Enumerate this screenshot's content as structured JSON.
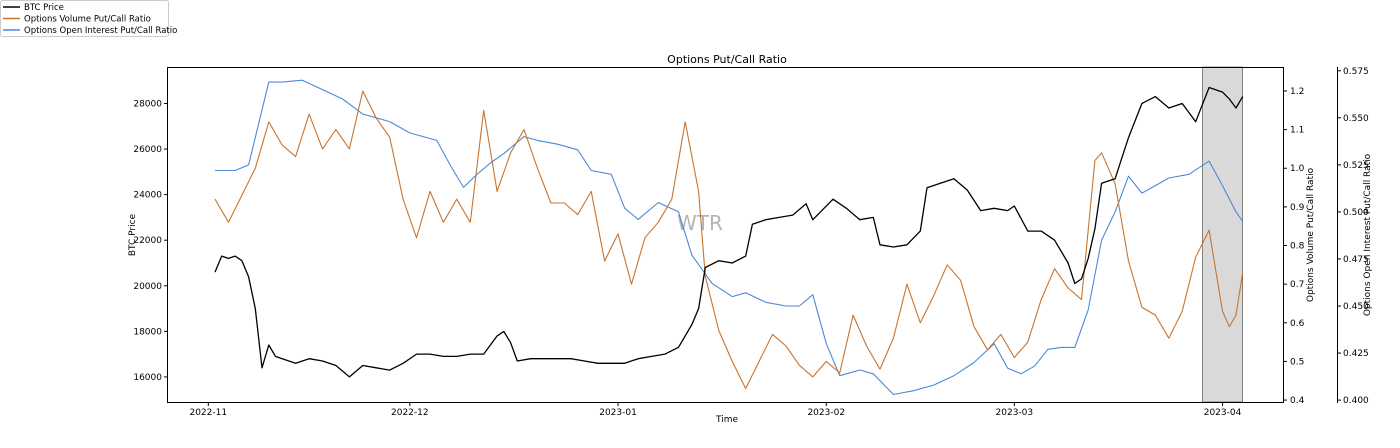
{
  "chart_data": {
    "type": "line",
    "title": "Options Put/Call Ratio",
    "xlabel": "Time",
    "watermark": "WTR",
    "x_ticks": [
      "2022-11",
      "2022-12",
      "2023-01",
      "2023-02",
      "2023-03",
      "2023-04"
    ],
    "x_range": [
      "2022-10-26",
      "2023-04-10"
    ],
    "shaded_region": [
      "2023-03-29",
      "2023-04-04"
    ],
    "legend": {
      "position": "top-left",
      "entries": [
        {
          "label": "BTC Price",
          "color": "#000000"
        },
        {
          "label": "Options Volume Put/Call Ratio",
          "color": "#c8742f"
        },
        {
          "label": "Options Open Interest Put/Call Ratio",
          "color": "#4a8ad8"
        }
      ]
    },
    "axes": {
      "left": {
        "label": "BTC Price",
        "ylim": [
          14900,
          29600
        ],
        "ticks": [
          16000,
          18000,
          20000,
          22000,
          24000,
          26000,
          28000
        ],
        "tick_labels": [
          "16000",
          "18000",
          "20000",
          "22000",
          "24000",
          "26000",
          "28000"
        ]
      },
      "right1": {
        "label": "Options Volume Put/Call Ratio",
        "ylim": [
          0.395,
          1.262
        ],
        "ticks": [
          0.4,
          0.5,
          0.6,
          0.7,
          0.8,
          0.9,
          1.0,
          1.1,
          1.2
        ],
        "tick_labels": [
          "0.4",
          "0.5",
          "0.6",
          "0.7",
          "0.8",
          "0.9",
          "1.0",
          "1.1",
          "1.2"
        ]
      },
      "right2": {
        "label": "Options Open Interest Put/Call Ratio",
        "ylim": [
          0.399,
          0.577
        ],
        "ticks": [
          0.4,
          0.425,
          0.45,
          0.475,
          0.5,
          0.525,
          0.55,
          0.575
        ],
        "tick_labels": [
          "0.400",
          "0.425",
          "0.450",
          "0.475",
          "0.500",
          "0.525",
          "0.550",
          "0.575"
        ]
      }
    },
    "series": [
      {
        "name": "BTC Price",
        "axis": "left",
        "color": "#000000",
        "points": [
          [
            "2022-11-02",
            20600
          ],
          [
            "2022-11-03",
            21300
          ],
          [
            "2022-11-04",
            21200
          ],
          [
            "2022-11-05",
            21300
          ],
          [
            "2022-11-06",
            21100
          ],
          [
            "2022-11-07",
            20400
          ],
          [
            "2022-11-08",
            19000
          ],
          [
            "2022-11-09",
            16400
          ],
          [
            "2022-11-10",
            17400
          ],
          [
            "2022-11-11",
            16900
          ],
          [
            "2022-11-12",
            16800
          ],
          [
            "2022-11-13",
            16700
          ],
          [
            "2022-11-14",
            16600
          ],
          [
            "2022-11-16",
            16800
          ],
          [
            "2022-11-18",
            16700
          ],
          [
            "2022-11-20",
            16500
          ],
          [
            "2022-11-22",
            16000
          ],
          [
            "2022-11-24",
            16500
          ],
          [
            "2022-11-26",
            16400
          ],
          [
            "2022-11-28",
            16300
          ],
          [
            "2022-11-30",
            16600
          ],
          [
            "2022-12-02",
            17000
          ],
          [
            "2022-12-04",
            17000
          ],
          [
            "2022-12-06",
            16900
          ],
          [
            "2022-12-08",
            16900
          ],
          [
            "2022-12-10",
            17000
          ],
          [
            "2022-12-12",
            17000
          ],
          [
            "2022-12-14",
            17800
          ],
          [
            "2022-12-15",
            18000
          ],
          [
            "2022-12-16",
            17500
          ],
          [
            "2022-12-17",
            16700
          ],
          [
            "2022-12-19",
            16800
          ],
          [
            "2022-12-21",
            16800
          ],
          [
            "2022-12-23",
            16800
          ],
          [
            "2022-12-25",
            16800
          ],
          [
            "2022-12-27",
            16700
          ],
          [
            "2022-12-29",
            16600
          ],
          [
            "2022-12-31",
            16600
          ],
          [
            "2023-01-02",
            16600
          ],
          [
            "2023-01-04",
            16800
          ],
          [
            "2023-01-06",
            16900
          ],
          [
            "2023-01-08",
            17000
          ],
          [
            "2023-01-10",
            17300
          ],
          [
            "2023-01-12",
            18300
          ],
          [
            "2023-01-13",
            19000
          ],
          [
            "2023-01-14",
            20800
          ],
          [
            "2023-01-16",
            21100
          ],
          [
            "2023-01-18",
            21000
          ],
          [
            "2023-01-20",
            21300
          ],
          [
            "2023-01-21",
            22700
          ],
          [
            "2023-01-23",
            22900
          ],
          [
            "2023-01-25",
            23000
          ],
          [
            "2023-01-27",
            23100
          ],
          [
            "2023-01-29",
            23600
          ],
          [
            "2023-01-30",
            22900
          ],
          [
            "2023-01-31",
            23200
          ],
          [
            "2023-02-02",
            23800
          ],
          [
            "2023-02-04",
            23400
          ],
          [
            "2023-02-06",
            22900
          ],
          [
            "2023-02-08",
            23000
          ],
          [
            "2023-02-09",
            21800
          ],
          [
            "2023-02-11",
            21700
          ],
          [
            "2023-02-13",
            21800
          ],
          [
            "2023-02-15",
            22400
          ],
          [
            "2023-02-16",
            24300
          ],
          [
            "2023-02-18",
            24500
          ],
          [
            "2023-02-20",
            24700
          ],
          [
            "2023-02-22",
            24200
          ],
          [
            "2023-02-24",
            23300
          ],
          [
            "2023-02-26",
            23400
          ],
          [
            "2023-02-28",
            23300
          ],
          [
            "2023-03-01",
            23500
          ],
          [
            "2023-03-03",
            22400
          ],
          [
            "2023-03-05",
            22400
          ],
          [
            "2023-03-07",
            22000
          ],
          [
            "2023-03-09",
            21000
          ],
          [
            "2023-03-10",
            20100
          ],
          [
            "2023-03-11",
            20300
          ],
          [
            "2023-03-12",
            21200
          ],
          [
            "2023-03-13",
            22500
          ],
          [
            "2023-03-14",
            24500
          ],
          [
            "2023-03-16",
            24700
          ],
          [
            "2023-03-18",
            26500
          ],
          [
            "2023-03-20",
            28000
          ],
          [
            "2023-03-22",
            28300
          ],
          [
            "2023-03-24",
            27800
          ],
          [
            "2023-03-26",
            28000
          ],
          [
            "2023-03-28",
            27200
          ],
          [
            "2023-03-30",
            28700
          ],
          [
            "2023-04-01",
            28500
          ],
          [
            "2023-04-02",
            28200
          ],
          [
            "2023-04-03",
            27800
          ],
          [
            "2023-04-04",
            28300
          ]
        ]
      },
      {
        "name": "Options Volume Put/Call Ratio",
        "axis": "right1",
        "color": "#c8742f",
        "points": [
          [
            "2022-11-02",
            0.92
          ],
          [
            "2022-11-04",
            0.86
          ],
          [
            "2022-11-06",
            0.93
          ],
          [
            "2022-11-08",
            1.0
          ],
          [
            "2022-11-10",
            1.12
          ],
          [
            "2022-11-12",
            1.06
          ],
          [
            "2022-11-14",
            1.03
          ],
          [
            "2022-11-16",
            1.14
          ],
          [
            "2022-11-18",
            1.05
          ],
          [
            "2022-11-20",
            1.1
          ],
          [
            "2022-11-22",
            1.05
          ],
          [
            "2022-11-24",
            1.2
          ],
          [
            "2022-11-26",
            1.13
          ],
          [
            "2022-11-28",
            1.08
          ],
          [
            "2022-11-30",
            0.92
          ],
          [
            "2022-12-02",
            0.82
          ],
          [
            "2022-12-04",
            0.94
          ],
          [
            "2022-12-06",
            0.86
          ],
          [
            "2022-12-08",
            0.92
          ],
          [
            "2022-12-10",
            0.86
          ],
          [
            "2022-12-12",
            1.15
          ],
          [
            "2022-12-14",
            0.94
          ],
          [
            "2022-12-16",
            1.04
          ],
          [
            "2022-12-18",
            1.1
          ],
          [
            "2022-12-20",
            1.0
          ],
          [
            "2022-12-22",
            0.91
          ],
          [
            "2022-12-24",
            0.91
          ],
          [
            "2022-12-26",
            0.88
          ],
          [
            "2022-12-28",
            0.94
          ],
          [
            "2022-12-30",
            0.76
          ],
          [
            "2023-01-01",
            0.83
          ],
          [
            "2023-01-03",
            0.7
          ],
          [
            "2023-01-05",
            0.82
          ],
          [
            "2023-01-07",
            0.86
          ],
          [
            "2023-01-09",
            0.92
          ],
          [
            "2023-01-11",
            1.12
          ],
          [
            "2023-01-13",
            0.94
          ],
          [
            "2023-01-14",
            0.72
          ],
          [
            "2023-01-16",
            0.58
          ],
          [
            "2023-01-18",
            0.5
          ],
          [
            "2023-01-20",
            0.43
          ],
          [
            "2023-01-22",
            0.5
          ],
          [
            "2023-01-24",
            0.57
          ],
          [
            "2023-01-26",
            0.54
          ],
          [
            "2023-01-28",
            0.49
          ],
          [
            "2023-01-30",
            0.46
          ],
          [
            "2023-02-01",
            0.5
          ],
          [
            "2023-02-03",
            0.47
          ],
          [
            "2023-02-05",
            0.62
          ],
          [
            "2023-02-07",
            0.54
          ],
          [
            "2023-02-09",
            0.48
          ],
          [
            "2023-02-11",
            0.56
          ],
          [
            "2023-02-13",
            0.7
          ],
          [
            "2023-02-15",
            0.6
          ],
          [
            "2023-02-17",
            0.67
          ],
          [
            "2023-02-19",
            0.75
          ],
          [
            "2023-02-21",
            0.71
          ],
          [
            "2023-02-23",
            0.59
          ],
          [
            "2023-02-25",
            0.53
          ],
          [
            "2023-02-27",
            0.57
          ],
          [
            "2023-03-01",
            0.51
          ],
          [
            "2023-03-03",
            0.55
          ],
          [
            "2023-03-05",
            0.66
          ],
          [
            "2023-03-07",
            0.74
          ],
          [
            "2023-03-09",
            0.69
          ],
          [
            "2023-03-11",
            0.66
          ],
          [
            "2023-03-13",
            1.02
          ],
          [
            "2023-03-14",
            1.04
          ],
          [
            "2023-03-16",
            0.96
          ],
          [
            "2023-03-18",
            0.76
          ],
          [
            "2023-03-20",
            0.64
          ],
          [
            "2023-03-22",
            0.62
          ],
          [
            "2023-03-24",
            0.56
          ],
          [
            "2023-03-26",
            0.63
          ],
          [
            "2023-03-28",
            0.77
          ],
          [
            "2023-03-30",
            0.84
          ],
          [
            "2023-04-01",
            0.63
          ],
          [
            "2023-04-02",
            0.59
          ],
          [
            "2023-04-03",
            0.62
          ],
          [
            "2023-04-04",
            0.73
          ]
        ]
      },
      {
        "name": "Options Open Interest Put/Call Ratio",
        "axis": "right2",
        "color": "#4a8ad8",
        "points": [
          [
            "2022-11-02",
            0.522
          ],
          [
            "2022-11-05",
            0.522
          ],
          [
            "2022-11-07",
            0.525
          ],
          [
            "2022-11-10",
            0.569
          ],
          [
            "2022-11-12",
            0.569
          ],
          [
            "2022-11-15",
            0.57
          ],
          [
            "2022-11-18",
            0.565
          ],
          [
            "2022-11-21",
            0.56
          ],
          [
            "2022-11-24",
            0.552
          ],
          [
            "2022-11-26",
            0.55
          ],
          [
            "2022-11-28",
            0.548
          ],
          [
            "2022-12-01",
            0.542
          ],
          [
            "2022-12-03",
            0.54
          ],
          [
            "2022-12-05",
            0.538
          ],
          [
            "2022-12-07",
            0.525
          ],
          [
            "2022-12-09",
            0.513
          ],
          [
            "2022-12-11",
            0.52
          ],
          [
            "2022-12-13",
            0.526
          ],
          [
            "2022-12-15",
            0.531
          ],
          [
            "2022-12-18",
            0.54
          ],
          [
            "2022-12-20",
            0.538
          ],
          [
            "2022-12-23",
            0.536
          ],
          [
            "2022-12-26",
            0.533
          ],
          [
            "2022-12-28",
            0.522
          ],
          [
            "2022-12-31",
            0.52
          ],
          [
            "2023-01-02",
            0.502
          ],
          [
            "2023-01-04",
            0.496
          ],
          [
            "2023-01-07",
            0.505
          ],
          [
            "2023-01-10",
            0.5
          ],
          [
            "2023-01-12",
            0.477
          ],
          [
            "2023-01-15",
            0.462
          ],
          [
            "2023-01-18",
            0.455
          ],
          [
            "2023-01-20",
            0.457
          ],
          [
            "2023-01-23",
            0.452
          ],
          [
            "2023-01-26",
            0.45
          ],
          [
            "2023-01-28",
            0.45
          ],
          [
            "2023-01-30",
            0.456
          ],
          [
            "2023-02-01",
            0.43
          ],
          [
            "2023-02-03",
            0.413
          ],
          [
            "2023-02-06",
            0.416
          ],
          [
            "2023-02-08",
            0.414
          ],
          [
            "2023-02-11",
            0.403
          ],
          [
            "2023-02-14",
            0.405
          ],
          [
            "2023-02-17",
            0.408
          ],
          [
            "2023-02-20",
            0.413
          ],
          [
            "2023-02-23",
            0.42
          ],
          [
            "2023-02-26",
            0.43
          ],
          [
            "2023-02-28",
            0.417
          ],
          [
            "2023-03-02",
            0.414
          ],
          [
            "2023-03-04",
            0.418
          ],
          [
            "2023-03-06",
            0.427
          ],
          [
            "2023-03-08",
            0.428
          ],
          [
            "2023-03-10",
            0.428
          ],
          [
            "2023-03-12",
            0.448
          ],
          [
            "2023-03-14",
            0.485
          ],
          [
            "2023-03-16",
            0.5
          ],
          [
            "2023-03-18",
            0.519
          ],
          [
            "2023-03-20",
            0.51
          ],
          [
            "2023-03-22",
            0.514
          ],
          [
            "2023-03-24",
            0.518
          ],
          [
            "2023-03-27",
            0.52
          ],
          [
            "2023-03-30",
            0.527
          ],
          [
            "2023-04-01",
            0.514
          ],
          [
            "2023-04-03",
            0.5
          ],
          [
            "2023-04-04",
            0.495
          ]
        ]
      }
    ]
  }
}
